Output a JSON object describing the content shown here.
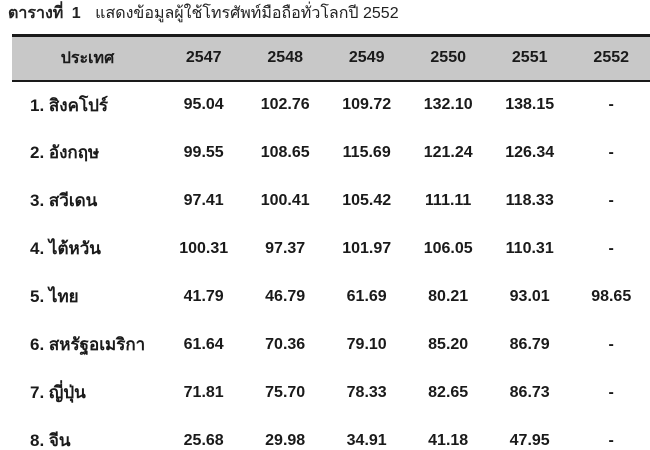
{
  "caption": {
    "label": "ตารางที่",
    "number": "1",
    "title": "แสดงข้อมูลผู้ใช้โทรศัพท์มือถือทั่วโลกปี 2552"
  },
  "table": {
    "headers": [
      "ประเทศ",
      "2547",
      "2548",
      "2549",
      "2550",
      "2551",
      "2552"
    ],
    "rows": [
      {
        "country": "1. สิงคโปร์",
        "values": [
          "95.04",
          "102.76",
          "109.72",
          "132.10",
          "138.15",
          "-"
        ]
      },
      {
        "country": "2. อังกฤษ",
        "values": [
          "99.55",
          "108.65",
          "115.69",
          "121.24",
          "126.34",
          "-"
        ]
      },
      {
        "country": "3. สวีเดน",
        "values": [
          "97.41",
          "100.41",
          "105.42",
          "111.11",
          "118.33",
          "-"
        ]
      },
      {
        "country": "4. ไต้หวัน",
        "values": [
          "100.31",
          "97.37",
          "101.97",
          "106.05",
          "110.31",
          "-"
        ]
      },
      {
        "country": "5. ไทย",
        "values": [
          "41.79",
          "46.79",
          "61.69",
          "80.21",
          "93.01",
          "98.65"
        ]
      },
      {
        "country": "6. สหรัฐอเมริกา",
        "values": [
          "61.64",
          "70.36",
          "79.10",
          "85.20",
          "86.79",
          "-"
        ]
      },
      {
        "country": "7. ญี่ปุ่น",
        "values": [
          "71.81",
          "75.70",
          "78.33",
          "82.65",
          "86.73",
          "-"
        ]
      },
      {
        "country": "8. จีน",
        "values": [
          "25.68",
          "29.98",
          "34.91",
          "41.18",
          "47.95",
          "-"
        ]
      }
    ]
  }
}
